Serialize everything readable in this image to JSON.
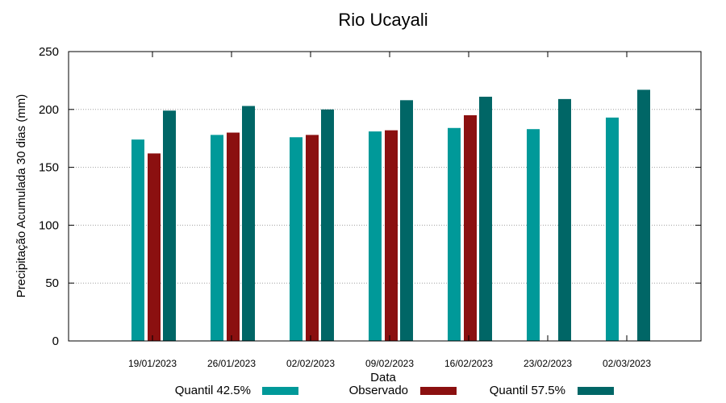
{
  "chart_data": {
    "type": "bar",
    "title": "Rio Ucayali",
    "xlabel": "Data",
    "ylabel": "Precipitação Acumulada 30 dias (mm)",
    "ylim": [
      0,
      250
    ],
    "yticks": [
      0,
      50,
      100,
      150,
      200,
      250
    ],
    "grid": true,
    "legend_position": "bottom",
    "categories": [
      "19/01/2023",
      "26/01/2023",
      "02/02/2023",
      "09/02/2023",
      "16/02/2023",
      "23/02/2023",
      "02/03/2023"
    ],
    "series": [
      {
        "name": "Quantil 42.5%",
        "color": "#009999",
        "values": [
          174,
          178,
          176,
          181,
          184,
          183,
          193
        ]
      },
      {
        "name": "Observado",
        "color": "#8b1010",
        "values": [
          162,
          180,
          178,
          182,
          195,
          null,
          null
        ]
      },
      {
        "name": "Quantil 57.5%",
        "color": "#006666",
        "values": [
          199,
          203,
          200,
          208,
          211,
          209,
          217
        ]
      }
    ]
  }
}
